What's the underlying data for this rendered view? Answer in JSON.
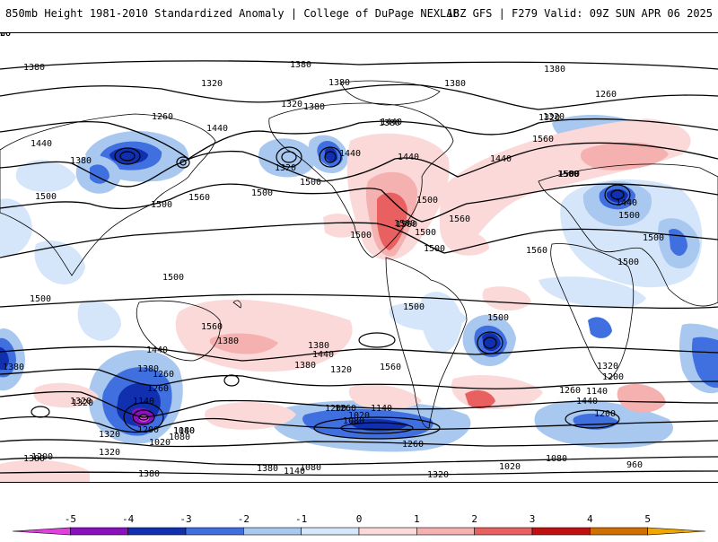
{
  "header": {
    "left": "850mb Height 1981-2010 Standardized Anomaly | College of DuPage NEXLAB",
    "right": "18Z GFS | F279 Valid: 09Z SUN APR 06 2025"
  },
  "contour_labels": [
    "1380",
    "1380",
    "1380",
    "1320",
    "1320",
    "1260",
    "1320",
    "1260",
    "1380",
    "1440",
    "1380",
    "1500",
    "1320",
    "1500",
    "1380",
    "1440",
    "1440",
    "1380",
    "1500",
    "1440",
    "1320",
    "1500",
    "1560",
    "1500",
    "1440",
    "1380",
    "1440",
    "1560",
    "1500",
    "1500",
    "1500",
    "1560",
    "1500",
    "1560",
    "1500",
    "1500",
    "1440",
    "1500",
    "1500",
    "1560",
    "1500",
    "1500",
    "1500",
    "1500",
    "1500",
    "1440",
    "1380",
    "1260",
    "1320",
    "1380",
    "1380",
    "1560",
    "1380",
    "1320",
    "1440",
    "1380",
    "1320",
    "1200",
    "1260",
    "1140",
    "1440",
    "1260",
    "1140",
    "1320",
    "1560",
    "1200",
    "1260",
    "1140",
    "1080",
    "1080",
    "1320",
    "1140",
    "1080",
    "1020",
    "1200",
    "1020",
    "1260",
    "1200",
    "1080",
    "960",
    "1020",
    "1320",
    "1380",
    "1380",
    "1320",
    "1200",
    "1080",
    "1140",
    "1380",
    "1260",
    "1200",
    "1320"
  ],
  "colorbar": {
    "ticks": [
      "-5",
      "-4",
      "-3",
      "-2",
      "-1",
      "0",
      "1",
      "2",
      "3",
      "4",
      "5"
    ],
    "colors": {
      "neg5": "#e040e0",
      "neg4": "#8a10c0",
      "neg3": "#1030b0",
      "neg2": "#4070e0",
      "neg1": "#a8c8f0",
      "neg05": "#d6e6fa",
      "pos05": "#fbd9d9",
      "pos1": "#f5b0b0",
      "pos2": "#e86060",
      "pos3": "#c01010",
      "pos4": "#d07000",
      "pos5": "#f0a800"
    }
  }
}
